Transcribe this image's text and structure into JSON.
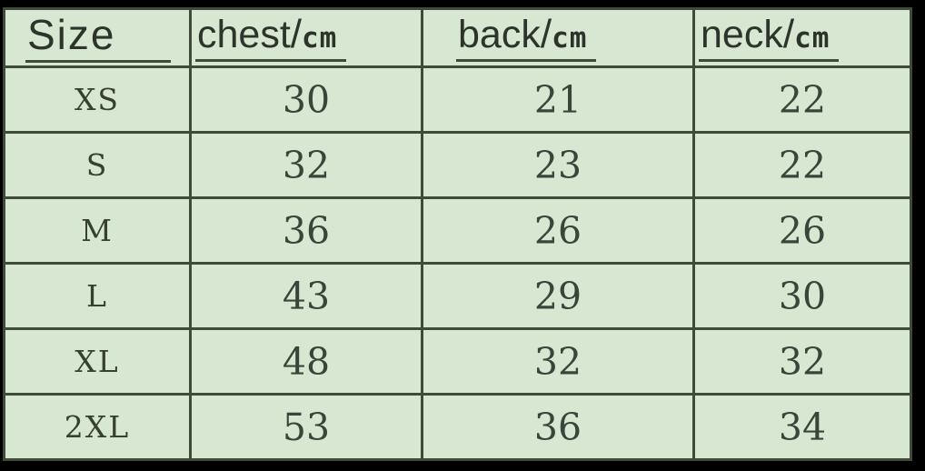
{
  "colors": {
    "background": "#d7e7d2",
    "grid": "#404a38",
    "text": "#343d33",
    "frame": "#000000"
  },
  "chart_data": {
    "type": "table",
    "headers": [
      {
        "word": "Size",
        "slash": "",
        "unit": ""
      },
      {
        "word": "chest",
        "slash": "/",
        "unit": "cm"
      },
      {
        "word": "back",
        "slash": "/",
        "unit": "cm"
      },
      {
        "word": "neck",
        "slash": "/",
        "unit": "cm"
      }
    ],
    "rows": [
      {
        "cells": [
          "XS",
          "30",
          "21",
          "22"
        ]
      },
      {
        "cells": [
          "S",
          "32",
          "23",
          "22"
        ]
      },
      {
        "cells": [
          "M",
          "36",
          "26",
          "26"
        ]
      },
      {
        "cells": [
          "L",
          "43",
          "29",
          "30"
        ]
      },
      {
        "cells": [
          "XL",
          "48",
          "32",
          "32"
        ]
      },
      {
        "cells": [
          "2XL",
          "53",
          "36",
          "34"
        ]
      }
    ],
    "units": "cm",
    "layout_hints": {
      "grid": true,
      "header_row": true,
      "background": "#d7e7d2"
    }
  }
}
